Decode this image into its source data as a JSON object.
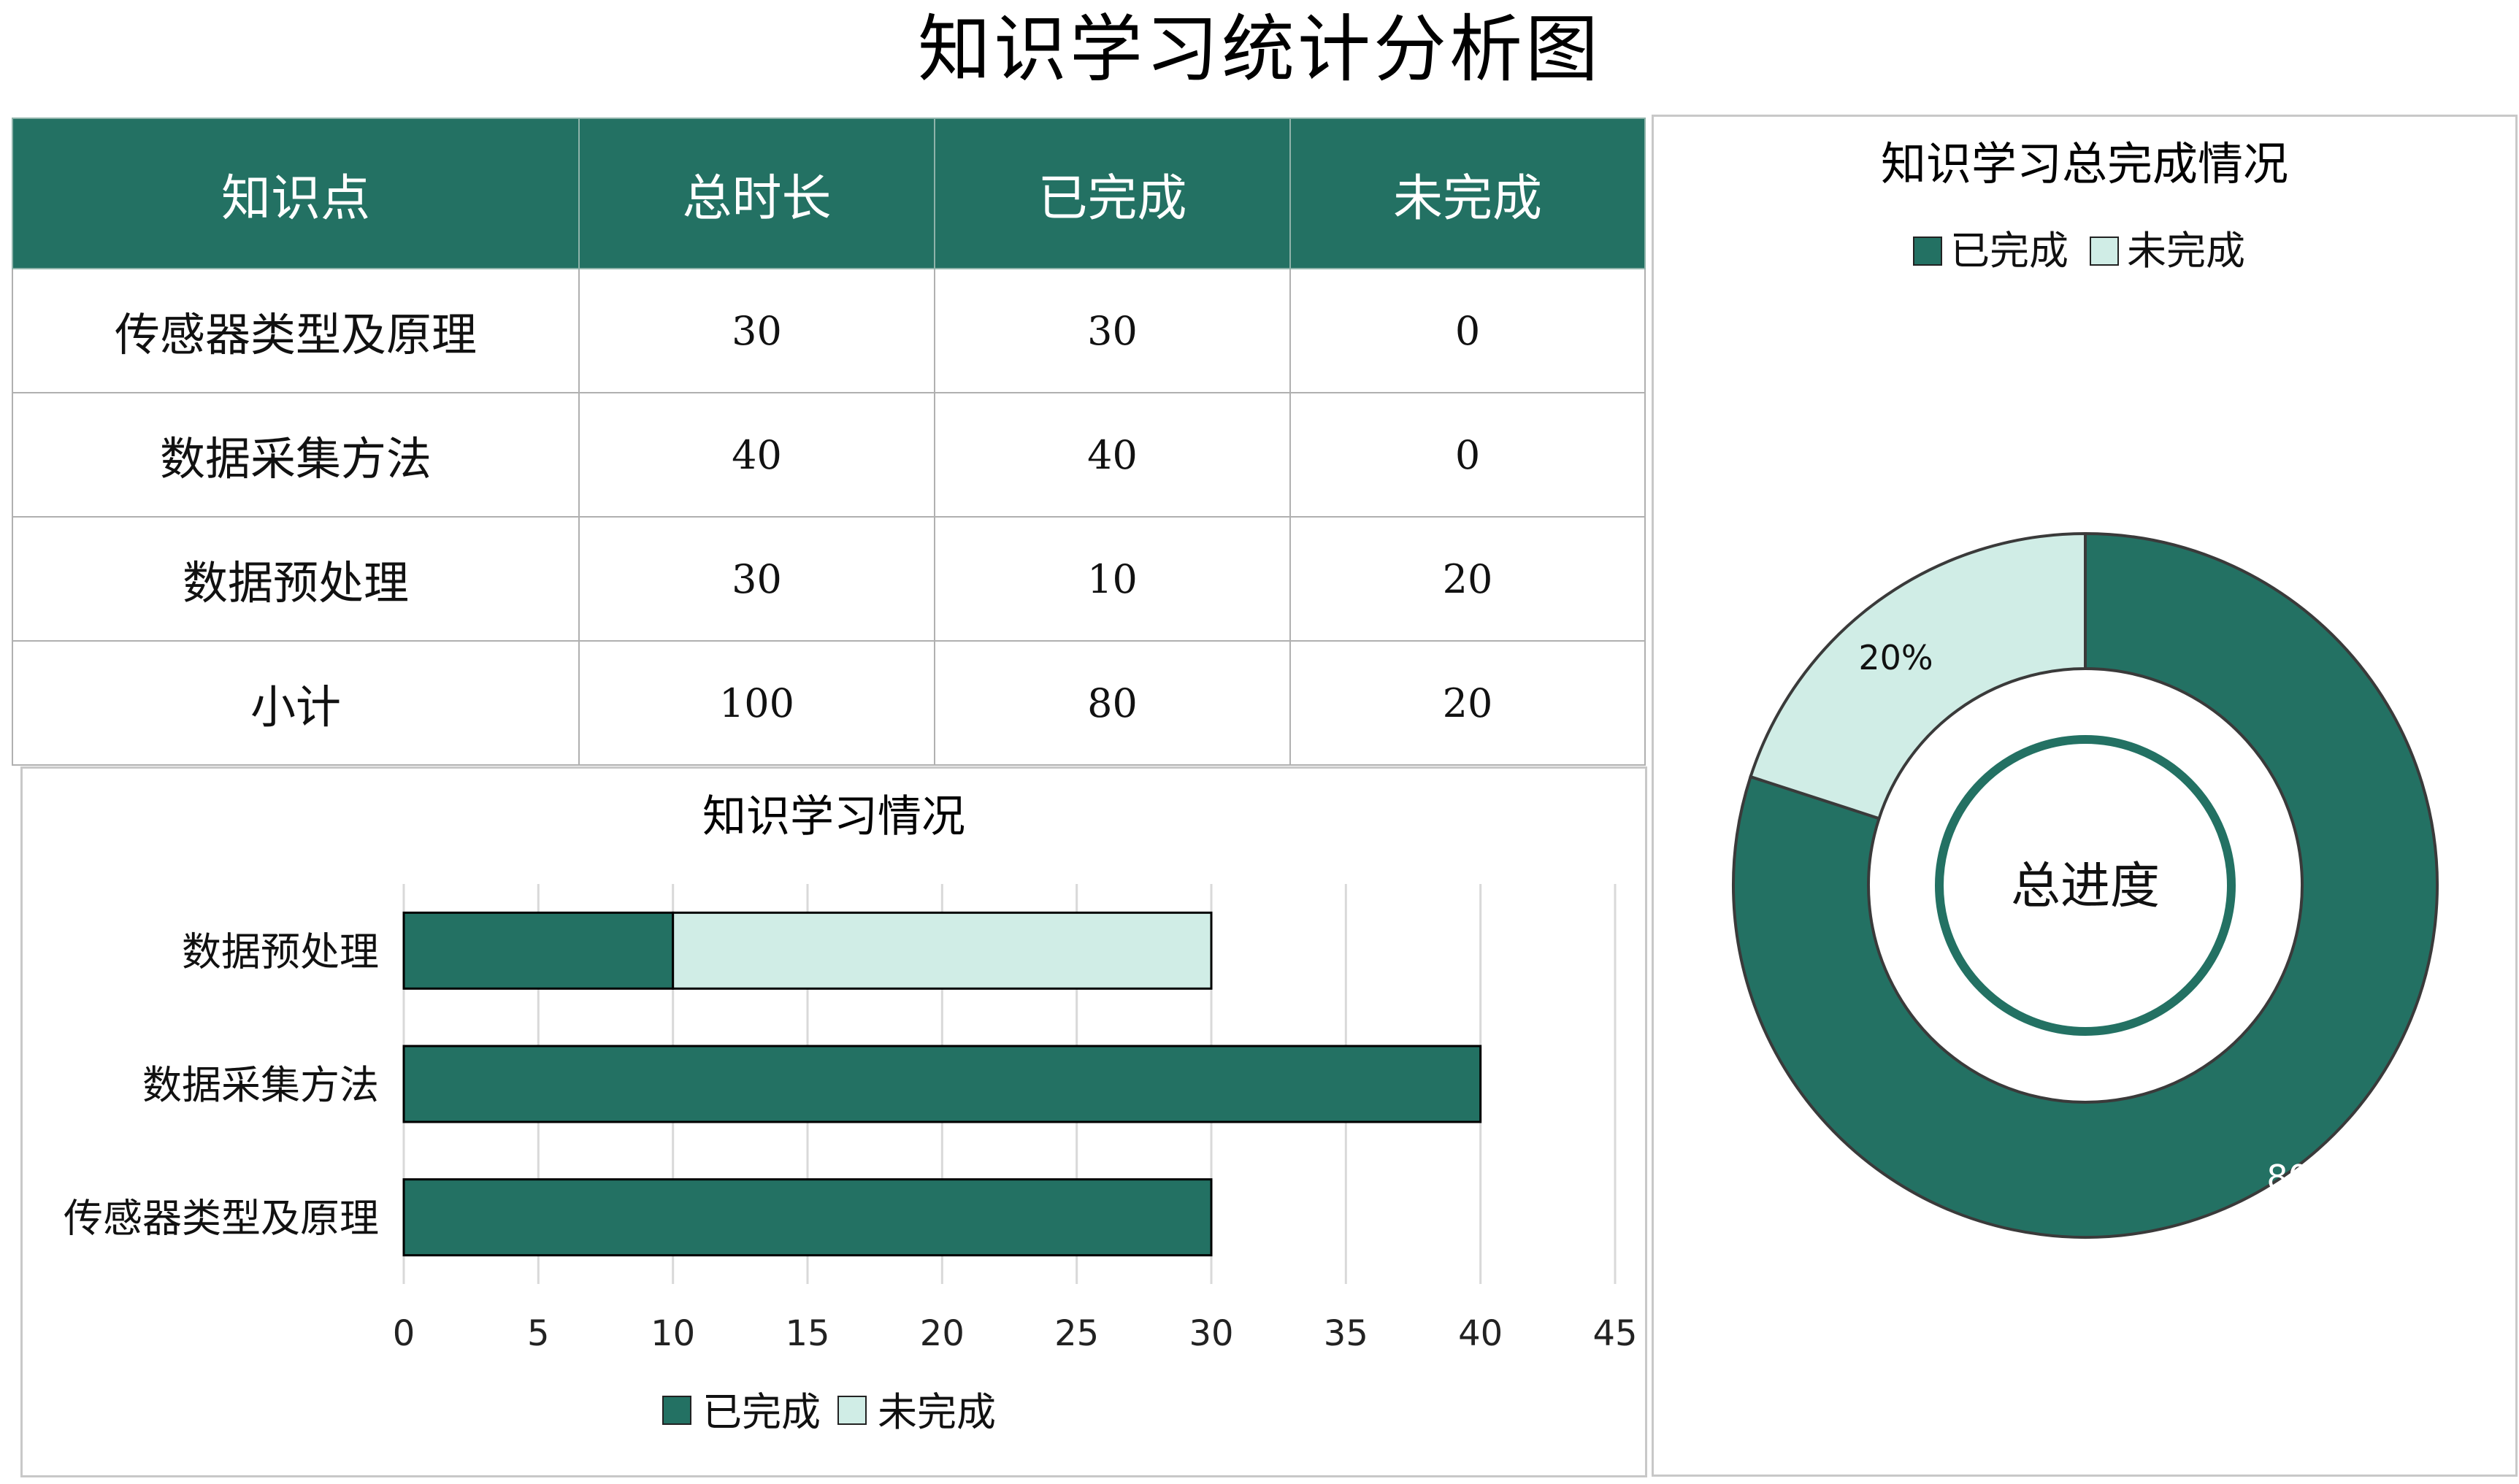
{
  "page": {
    "title": "知识学习统计分析图"
  },
  "table": {
    "headers": [
      "知识点",
      "总时长",
      "已完成",
      "未完成"
    ],
    "rows": [
      [
        "传感器类型及原理",
        "30",
        "30",
        "0"
      ],
      [
        "数据采集方法",
        "40",
        "40",
        "0"
      ],
      [
        "数据预处理",
        "30",
        "10",
        "20"
      ],
      [
        "小计",
        "100",
        "80",
        "20"
      ]
    ]
  },
  "colors": {
    "completed": "#237163",
    "incomplete": "#d0ede6",
    "header_bg": "#237163"
  },
  "chart_data": [
    {
      "type": "bar",
      "orientation": "horizontal",
      "stacked": true,
      "title": "知识学习情况",
      "categories": [
        "传感器类型及原理",
        "数据采集方法",
        "数据预处理"
      ],
      "series": [
        {
          "name": "已完成",
          "values": [
            30,
            40,
            10
          ]
        },
        {
          "name": "未完成",
          "values": [
            0,
            0,
            20
          ]
        }
      ],
      "xlim": [
        0,
        45
      ],
      "xticks": [
        "0",
        "5",
        "10",
        "15",
        "20",
        "25",
        "30",
        "35",
        "40",
        "45"
      ],
      "grid": true,
      "legend_position": "bottom"
    },
    {
      "type": "pie",
      "variant": "donut",
      "title": "知识学习总完成情况",
      "labels": [
        "已完成",
        "未完成"
      ],
      "values": [
        80,
        20
      ],
      "data_labels": [
        "80%",
        "20%"
      ],
      "center_text": "总进度",
      "legend_position": "top"
    }
  ]
}
